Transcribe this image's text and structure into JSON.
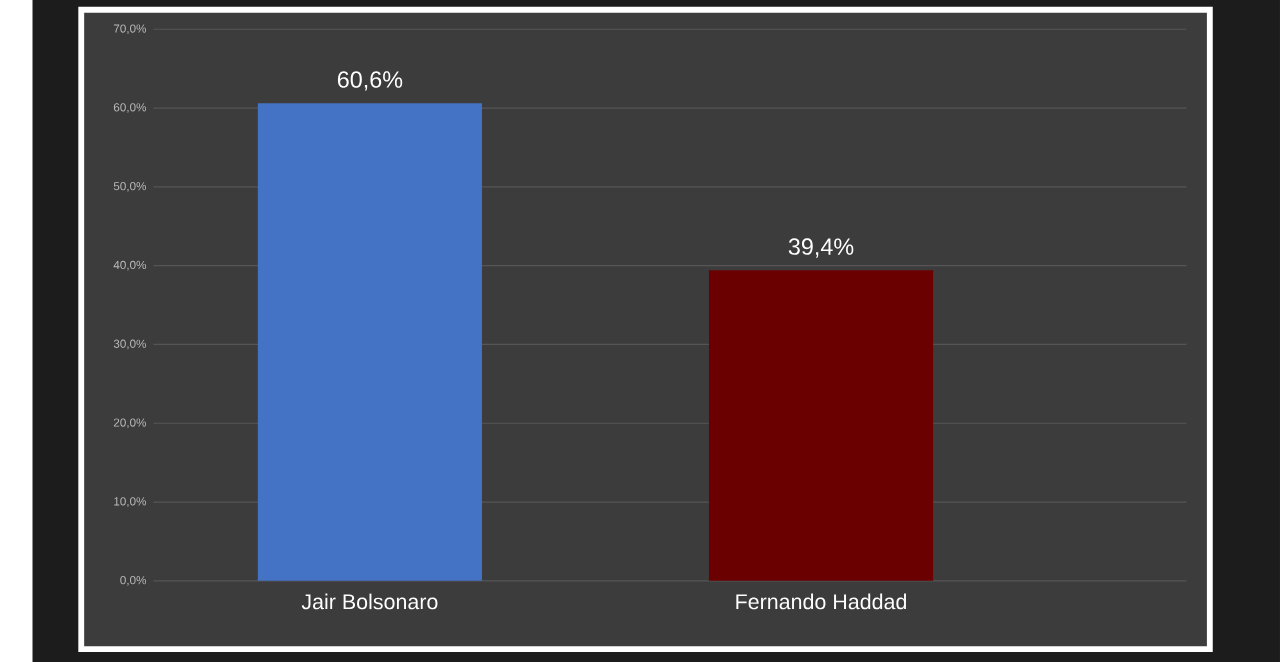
{
  "chart_data": {
    "type": "bar",
    "categories": [
      "Jair Bolsonaro",
      "Fernando Haddad"
    ],
    "values": [
      60.6,
      39.4
    ],
    "colors": [
      "#4472c4",
      "#6b0000"
    ],
    "value_labels": [
      "60,6%",
      "39,4%"
    ],
    "ylim": [
      0,
      70
    ],
    "yticks": [
      {
        "value": 0,
        "label": "0,0%"
      },
      {
        "value": 10,
        "label": "10,0%"
      },
      {
        "value": 20,
        "label": "20,0%"
      },
      {
        "value": 30,
        "label": "30,0%"
      },
      {
        "value": 40,
        "label": "40,0%"
      },
      {
        "value": 50,
        "label": "50,0%"
      },
      {
        "value": 60,
        "label": "60,0%"
      },
      {
        "value": 70,
        "label": "70,0%"
      }
    ],
    "grid": "y"
  }
}
